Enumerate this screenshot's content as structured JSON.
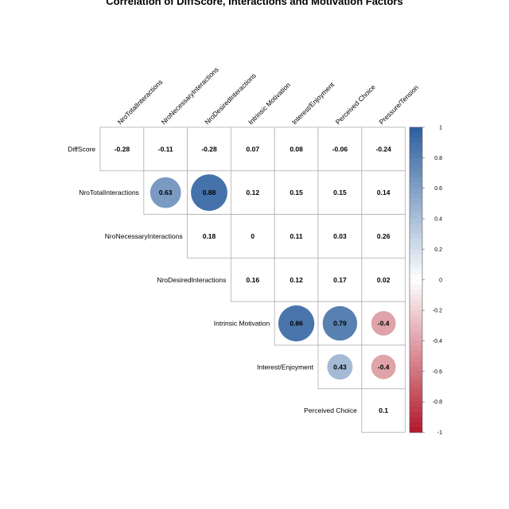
{
  "chart_data": {
    "type": "heatmap",
    "title": "Correlation of DiffScore, Interactions and Motivation Factors",
    "row_labels": [
      "DiffScore",
      "NroTotalInteractions",
      "NroNecessaryInteractions",
      "NroDesiredInteractions",
      "Intrinsic Motivation",
      "Interest/Enjoyment",
      "Perceived Choice"
    ],
    "col_labels": [
      "NroTotalInteractions",
      "NroNecessaryInteractions",
      "NroDesiredInteractions",
      "Intrinsic Motivation",
      "Interest/Enjoyment",
      "Perceived Choice",
      "Pressure/Tension"
    ],
    "cells": [
      {
        "row": 0,
        "col": 0,
        "value": -0.28,
        "label": "-0.28",
        "significant": false
      },
      {
        "row": 0,
        "col": 1,
        "value": -0.11,
        "label": "-0.11",
        "significant": false
      },
      {
        "row": 0,
        "col": 2,
        "value": -0.28,
        "label": "-0.28",
        "significant": false
      },
      {
        "row": 0,
        "col": 3,
        "value": 0.07,
        "label": "0.07",
        "significant": false
      },
      {
        "row": 0,
        "col": 4,
        "value": 0.08,
        "label": "0.08",
        "significant": false
      },
      {
        "row": 0,
        "col": 5,
        "value": -0.06,
        "label": "-0.06",
        "significant": false
      },
      {
        "row": 0,
        "col": 6,
        "value": -0.24,
        "label": "-0.24",
        "significant": false
      },
      {
        "row": 1,
        "col": 1,
        "value": 0.63,
        "label": "0.63",
        "significant": true
      },
      {
        "row": 1,
        "col": 2,
        "value": 0.88,
        "label": "0.88",
        "significant": true
      },
      {
        "row": 1,
        "col": 3,
        "value": 0.12,
        "label": "0.12",
        "significant": false
      },
      {
        "row": 1,
        "col": 4,
        "value": 0.15,
        "label": "0.15",
        "significant": false
      },
      {
        "row": 1,
        "col": 5,
        "value": 0.15,
        "label": "0.15",
        "significant": false
      },
      {
        "row": 1,
        "col": 6,
        "value": 0.14,
        "label": "0.14",
        "significant": false
      },
      {
        "row": 2,
        "col": 2,
        "value": 0.18,
        "label": "0.18",
        "significant": false
      },
      {
        "row": 2,
        "col": 3,
        "value": 0,
        "label": "0",
        "significant": false
      },
      {
        "row": 2,
        "col": 4,
        "value": 0.11,
        "label": "0.11",
        "significant": false
      },
      {
        "row": 2,
        "col": 5,
        "value": 0.03,
        "label": "0.03",
        "significant": false
      },
      {
        "row": 2,
        "col": 6,
        "value": 0.26,
        "label": "0.26",
        "significant": false
      },
      {
        "row": 3,
        "col": 3,
        "value": 0.16,
        "label": "0.16",
        "significant": false
      },
      {
        "row": 3,
        "col": 4,
        "value": 0.12,
        "label": "0.12",
        "significant": false
      },
      {
        "row": 3,
        "col": 5,
        "value": 0.17,
        "label": "0.17",
        "significant": false
      },
      {
        "row": 3,
        "col": 6,
        "value": 0.02,
        "label": "0.02",
        "significant": false
      },
      {
        "row": 4,
        "col": 4,
        "value": 0.86,
        "label": "0.86",
        "significant": true
      },
      {
        "row": 4,
        "col": 5,
        "value": 0.79,
        "label": "0.79",
        "significant": true
      },
      {
        "row": 4,
        "col": 6,
        "value": -0.4,
        "label": "-0.4",
        "significant": true
      },
      {
        "row": 5,
        "col": 5,
        "value": 0.43,
        "label": "0.43",
        "significant": true
      },
      {
        "row": 5,
        "col": 6,
        "value": -0.4,
        "label": "-0.4",
        "significant": true
      },
      {
        "row": 6,
        "col": 6,
        "value": 0.1,
        "label": "0.1",
        "significant": false
      }
    ],
    "colorbar": {
      "min": -1,
      "max": 1,
      "ticks": [
        "1",
        "0.8",
        "0.6",
        "0.4",
        "0.2",
        "0",
        "-0.2",
        "-0.4",
        "-0.6",
        "-0.8",
        "-1"
      ],
      "colors": {
        "negative": "#b2182b",
        "neutral": "#ffffff",
        "positive": "#2c5f9e"
      }
    },
    "grid_color": "#b0b0b0"
  }
}
